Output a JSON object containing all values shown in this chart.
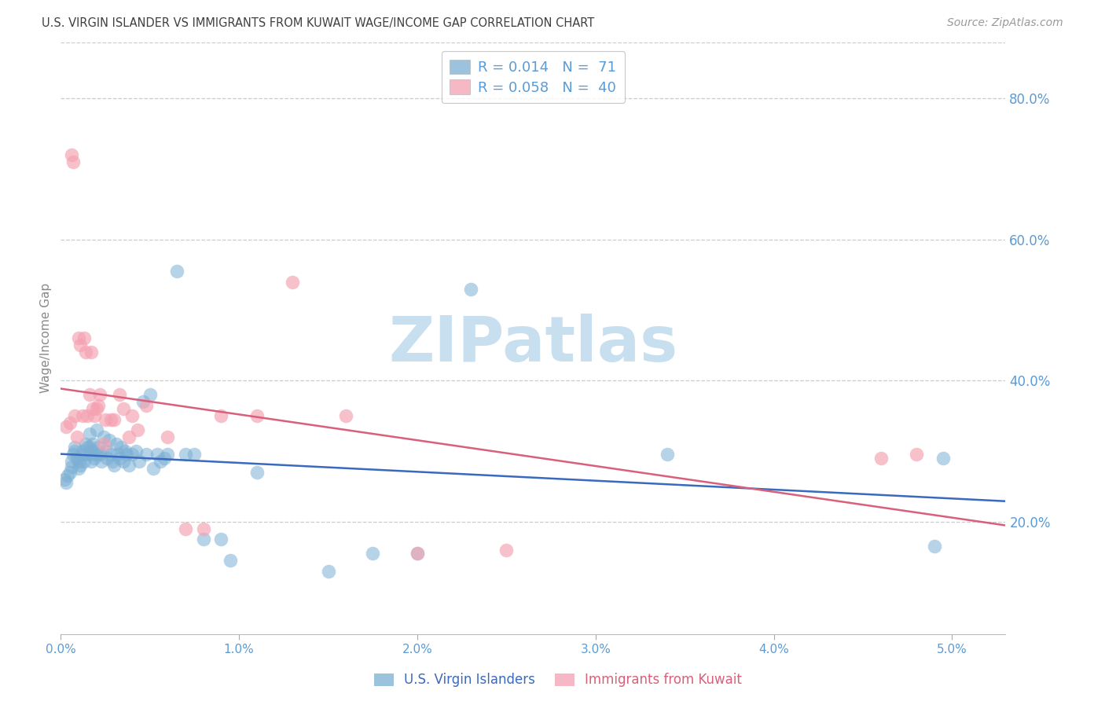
{
  "title": "U.S. VIRGIN ISLANDER VS IMMIGRANTS FROM KUWAIT WAGE/INCOME GAP CORRELATION CHART",
  "source": "Source: ZipAtlas.com",
  "ylabel": "Wage/Income Gap",
  "yticks": [
    0.2,
    0.4,
    0.6,
    0.8
  ],
  "ytick_labels": [
    "20.0%",
    "40.0%",
    "60.0%",
    "80.0%"
  ],
  "xticks": [
    0.0,
    0.01,
    0.02,
    0.03,
    0.04,
    0.05
  ],
  "xtick_labels": [
    "0.0%",
    "1.0%",
    "2.0%",
    "3.0%",
    "4.0%",
    "5.0%"
  ],
  "xlim": [
    0.0,
    0.053
  ],
  "ylim": [
    0.04,
    0.88
  ],
  "legend1_label": "R = 0.014   N =  71",
  "legend2_label": "R = 0.058   N =  40",
  "group1_label": "U.S. Virgin Islanders",
  "group2_label": "Immigrants from Kuwait",
  "group1_color": "#7bafd4",
  "group2_color": "#f4a0b0",
  "group1_trend_color": "#3a6abf",
  "group2_trend_color": "#d9607a",
  "watermark": "ZIPatlas",
  "watermark_color": "#c8dff0",
  "title_color": "#404040",
  "source_color": "#999999",
  "axis_tick_color": "#5b9bd5",
  "grid_color": "#cccccc",
  "blue_x": [
    0.0002,
    0.0003,
    0.0004,
    0.0005,
    0.0006,
    0.0006,
    0.0007,
    0.0008,
    0.0008,
    0.0009,
    0.001,
    0.001,
    0.0011,
    0.0012,
    0.0012,
    0.0013,
    0.0014,
    0.0015,
    0.0015,
    0.0016,
    0.0016,
    0.0017,
    0.0017,
    0.0018,
    0.0018,
    0.0019,
    0.002,
    0.002,
    0.0021,
    0.0022,
    0.0023,
    0.0024,
    0.0025,
    0.0026,
    0.0027,
    0.0028,
    0.0029,
    0.003,
    0.0031,
    0.0032,
    0.0033,
    0.0034,
    0.0035,
    0.0036,
    0.0037,
    0.0038,
    0.004,
    0.0042,
    0.0044,
    0.0046,
    0.0048,
    0.005,
    0.0052,
    0.0054,
    0.0056,
    0.0058,
    0.006,
    0.0065,
    0.007,
    0.0075,
    0.008,
    0.009,
    0.0095,
    0.011,
    0.015,
    0.0175,
    0.02,
    0.023,
    0.034,
    0.049,
    0.0495
  ],
  "blue_y": [
    0.26,
    0.255,
    0.265,
    0.27,
    0.285,
    0.278,
    0.295,
    0.3,
    0.305,
    0.29,
    0.285,
    0.275,
    0.28,
    0.295,
    0.3,
    0.285,
    0.31,
    0.305,
    0.295,
    0.325,
    0.305,
    0.295,
    0.285,
    0.31,
    0.3,
    0.29,
    0.33,
    0.295,
    0.305,
    0.295,
    0.285,
    0.32,
    0.3,
    0.29,
    0.315,
    0.295,
    0.285,
    0.28,
    0.31,
    0.295,
    0.29,
    0.305,
    0.285,
    0.3,
    0.295,
    0.28,
    0.295,
    0.3,
    0.285,
    0.37,
    0.295,
    0.38,
    0.275,
    0.295,
    0.285,
    0.29,
    0.295,
    0.555,
    0.295,
    0.295,
    0.175,
    0.175,
    0.145,
    0.27,
    0.13,
    0.155,
    0.155,
    0.53,
    0.295,
    0.165,
    0.29
  ],
  "pink_x": [
    0.0003,
    0.0005,
    0.0006,
    0.0007,
    0.0008,
    0.0009,
    0.001,
    0.0011,
    0.0012,
    0.0013,
    0.0014,
    0.0015,
    0.0016,
    0.0017,
    0.0018,
    0.0019,
    0.002,
    0.0021,
    0.0022,
    0.0024,
    0.0025,
    0.0028,
    0.003,
    0.0033,
    0.0035,
    0.0038,
    0.004,
    0.0043,
    0.0048,
    0.006,
    0.007,
    0.008,
    0.009,
    0.011,
    0.013,
    0.016,
    0.02,
    0.025,
    0.046,
    0.048
  ],
  "pink_y": [
    0.335,
    0.34,
    0.72,
    0.71,
    0.35,
    0.32,
    0.46,
    0.45,
    0.35,
    0.46,
    0.44,
    0.35,
    0.38,
    0.44,
    0.36,
    0.35,
    0.36,
    0.365,
    0.38,
    0.31,
    0.345,
    0.345,
    0.345,
    0.38,
    0.36,
    0.32,
    0.35,
    0.33,
    0.365,
    0.32,
    0.19,
    0.19,
    0.35,
    0.35,
    0.54,
    0.35,
    0.155,
    0.16,
    0.29,
    0.295
  ]
}
